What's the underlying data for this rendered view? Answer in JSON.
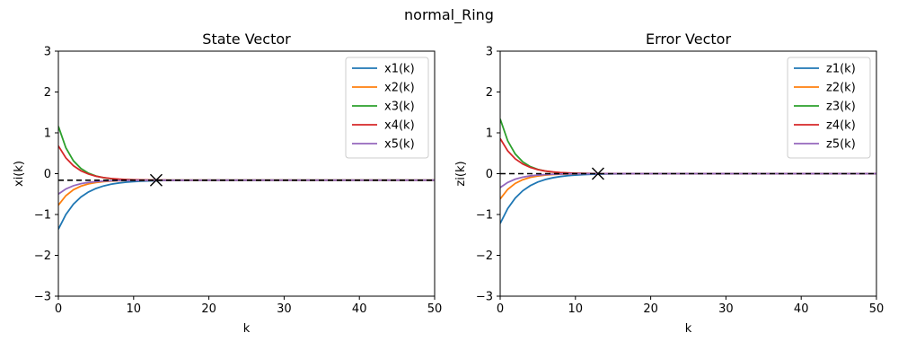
{
  "figure_title": "normal_Ring",
  "chart_data": [
    {
      "type": "line",
      "title": "State Vector",
      "xlabel": "k",
      "ylabel": "xi(k)",
      "xlim": [
        0,
        50
      ],
      "ylim": [
        -3,
        3
      ],
      "xticks": [
        0,
        10,
        20,
        30,
        40,
        50
      ],
      "yticks": [
        -3,
        -2,
        -1,
        0,
        1,
        2,
        3
      ],
      "grid": false,
      "legend": "top-right",
      "consensus": {
        "value": -0.16,
        "k": 13
      },
      "series": [
        {
          "name": "x1(k)",
          "color": "#1f77b4",
          "start": -1.36,
          "rate": 0.7
        },
        {
          "name": "x2(k)",
          "color": "#ff7f0e",
          "start": -0.77,
          "rate": 0.62
        },
        {
          "name": "x3(k)",
          "color": "#2ca02c",
          "start": 1.16,
          "rate": 0.6
        },
        {
          "name": "x4(k)",
          "color": "#d62728",
          "start": 0.68,
          "rate": 0.65
        },
        {
          "name": "x5(k)",
          "color": "#9467bd",
          "start": -0.5,
          "rate": 0.63
        }
      ]
    },
    {
      "type": "line",
      "title": "Error Vector",
      "xlabel": "k",
      "ylabel": "zi(k)",
      "xlim": [
        0,
        50
      ],
      "ylim": [
        -3,
        3
      ],
      "xticks": [
        0,
        10,
        20,
        30,
        40,
        50
      ],
      "yticks": [
        -3,
        -2,
        -1,
        0,
        1,
        2,
        3
      ],
      "grid": false,
      "legend": "top-right",
      "consensus": {
        "value": 0,
        "k": 13
      },
      "series": [
        {
          "name": "z1(k)",
          "color": "#1f77b4",
          "start": -1.22,
          "rate": 0.7
        },
        {
          "name": "z2(k)",
          "color": "#ff7f0e",
          "start": -0.62,
          "rate": 0.62
        },
        {
          "name": "z3(k)",
          "color": "#2ca02c",
          "start": 1.34,
          "rate": 0.6
        },
        {
          "name": "z4(k)",
          "color": "#d62728",
          "start": 0.86,
          "rate": 0.65
        },
        {
          "name": "z5(k)",
          "color": "#9467bd",
          "start": -0.34,
          "rate": 0.63
        }
      ]
    }
  ]
}
